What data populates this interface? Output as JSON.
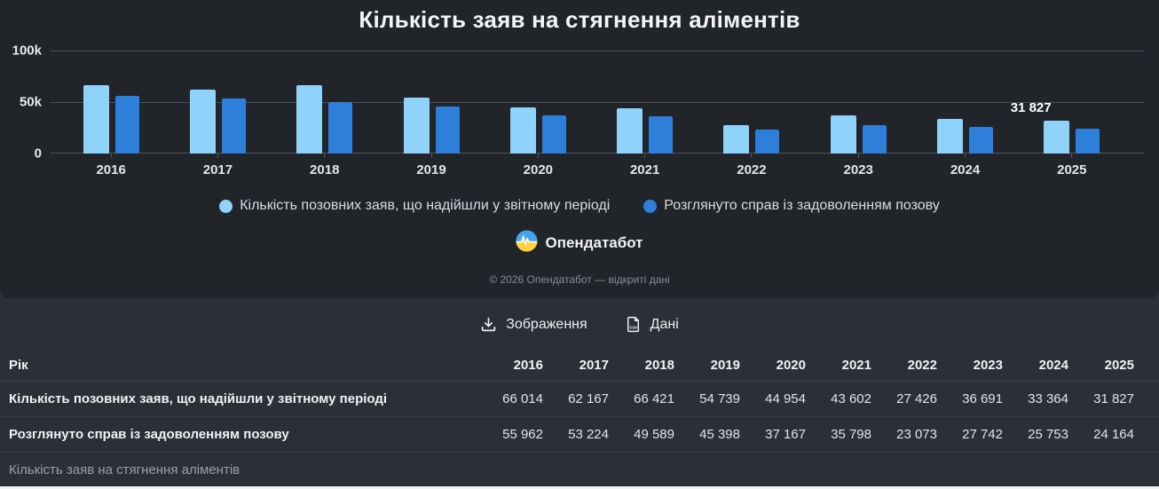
{
  "title": "Кількість заяв на стягнення аліментів",
  "chart_data": {
    "type": "bar",
    "categories": [
      "2016",
      "2017",
      "2018",
      "2019",
      "2020",
      "2021",
      "2022",
      "2023",
      "2024",
      "2025"
    ],
    "series": [
      {
        "name": "Кількість позовних заяв, що надійшли у звітному періоді",
        "color": "#8fd3fa",
        "values": [
          66014,
          62167,
          66421,
          54739,
          44954,
          43602,
          27426,
          36691,
          33364,
          31827
        ]
      },
      {
        "name": "Розглянуто справ із задоволенням позову",
        "color": "#2e7fd9",
        "values": [
          55962,
          53224,
          49589,
          45398,
          37167,
          35798,
          23073,
          27742,
          25753,
          24164
        ]
      }
    ],
    "ylim": [
      0,
      100000
    ],
    "yticks": [
      "100k",
      "50k",
      "0"
    ],
    "grid": true,
    "legend_position": "bottom",
    "point_label": {
      "text": "31 827",
      "category": "2025",
      "series_index": 0
    }
  },
  "branding": {
    "logo_text": "Опендатабот",
    "copyright": "© 2026 Опендатабот — відкриті дані"
  },
  "actions": {
    "image_label": "Зображення",
    "data_label": "Дані"
  },
  "table": {
    "header": {
      "label": "Рік",
      "years": [
        "2016",
        "2017",
        "2018",
        "2019",
        "2020",
        "2021",
        "2022",
        "2023",
        "2024",
        "2025"
      ]
    },
    "rows": [
      {
        "label": "Кількість позовних заяв, що надійшли у звітному періоді",
        "values": [
          "66 014",
          "62 167",
          "66 421",
          "54 739",
          "44 954",
          "43 602",
          "27 426",
          "36 691",
          "33 364",
          "31 827"
        ]
      },
      {
        "label": "Розглянуто справ із задоволенням позову",
        "values": [
          "55 962",
          "53 224",
          "49 589",
          "45 398",
          "37 167",
          "35 798",
          "23 073",
          "27 742",
          "25 753",
          "24 164"
        ]
      }
    ]
  },
  "caption": "Кількість заяв на стягнення аліментів"
}
